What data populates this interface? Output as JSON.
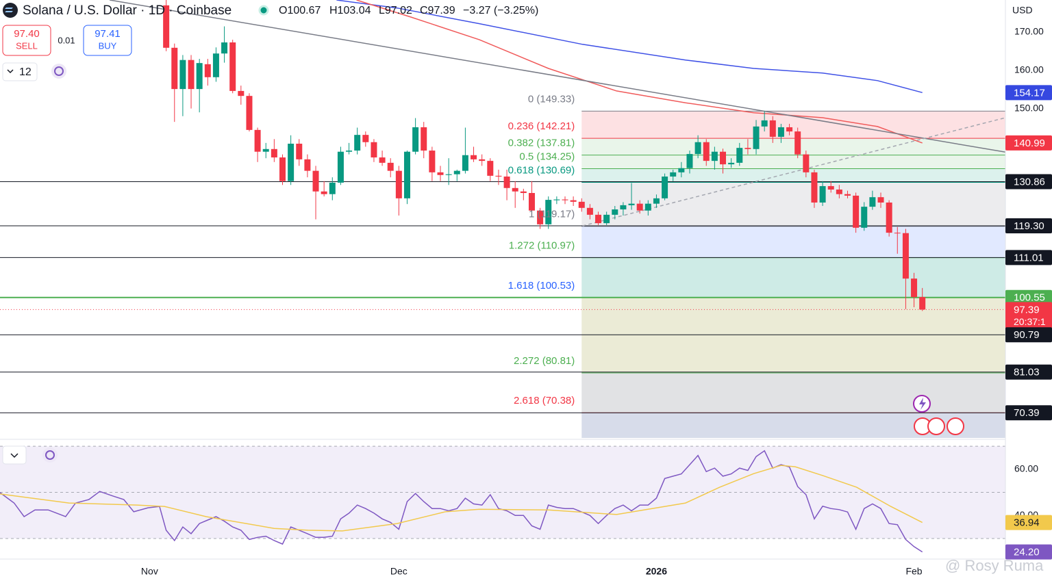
{
  "header": {
    "symbol": "Solana / U.S. Dollar · 1D · Coinbase",
    "open": "O100.67",
    "high": "H103.04",
    "low": "L97.02",
    "close": "C97.39",
    "change": "−3.27 (−3.25%)"
  },
  "trade": {
    "sell_price": "97.40",
    "sell": "SELL",
    "spread": "0.01",
    "buy_price": "97.41",
    "buy": "BUY"
  },
  "toolbar": {
    "interval": "12"
  },
  "watermark": "@ Rosy Ruma",
  "chart_data": {
    "type": "candlestick",
    "currency": "USD",
    "up_color": "#089981",
    "down_color": "#f23645",
    "xlim": [
      -20,
      101
    ],
    "xticks": [
      {
        "value": -2,
        "label": "Nov"
      },
      {
        "value": 28,
        "label": "Dec"
      },
      {
        "value": 59,
        "label": "2026"
      },
      {
        "value": 90,
        "label": "Feb"
      }
    ],
    "ylim": [
      63.8,
      178.4
    ],
    "yticks": [
      {
        "value": 170,
        "label": "170.00"
      },
      {
        "value": 160,
        "label": "160.00"
      },
      {
        "value": 150,
        "label": "150.00"
      }
    ],
    "grid": false,
    "candles": [
      [
        177,
        178.4,
        165,
        165.9
      ],
      [
        165.9,
        167,
        146.5,
        155.1
      ],
      [
        155.1,
        164,
        148,
        162.7
      ],
      [
        162.7,
        164,
        150,
        155.1
      ],
      [
        155.1,
        163,
        149,
        161.9
      ],
      [
        161.6,
        163,
        156,
        158.2
      ],
      [
        158.2,
        166,
        157,
        164.4
      ],
      [
        164.4,
        171.5,
        162,
        167.3
      ],
      [
        167.3,
        168,
        154,
        154.6
      ],
      [
        154.6,
        156,
        151,
        153.3
      ],
      [
        153.3,
        154,
        144,
        144.4
      ],
      [
        144.4,
        145,
        136,
        138.7
      ],
      [
        138.7,
        141,
        137,
        139.4
      ],
      [
        139.4,
        142,
        136,
        137.2
      ],
      [
        137.2,
        138,
        130,
        131.0
      ],
      [
        131.0,
        143,
        130,
        140.8
      ],
      [
        140.8,
        142,
        135,
        136.7
      ],
      [
        136.7,
        138,
        132,
        133.7
      ],
      [
        133.7,
        135,
        121,
        128.3
      ],
      [
        128.3,
        131,
        127,
        127.6
      ],
      [
        127.6,
        132,
        126,
        130.6
      ],
      [
        130.6,
        140,
        130,
        138.7
      ],
      [
        138.7,
        141,
        138,
        139.0
      ],
      [
        139.0,
        145,
        138,
        143.1
      ],
      [
        143.1,
        144,
        140,
        141.2
      ],
      [
        141.2,
        142,
        136,
        137.2
      ],
      [
        137.2,
        139,
        135,
        135.8
      ],
      [
        135.8,
        137,
        132,
        133.7
      ],
      [
        133.7,
        135,
        122,
        126.5
      ],
      [
        126.5,
        139,
        125,
        138.7
      ],
      [
        138.7,
        147.5,
        138,
        145.1
      ],
      [
        145.1,
        146.5,
        137,
        139.0
      ],
      [
        139.0,
        140,
        131,
        133.3
      ],
      [
        133.3,
        135,
        131,
        132.6
      ],
      [
        132.6,
        137,
        130,
        132.8
      ],
      [
        132.8,
        134,
        131,
        133.7
      ],
      [
        133.7,
        145,
        133,
        137.8
      ],
      [
        137.8,
        140,
        136,
        136.7
      ],
      [
        136.7,
        138,
        135,
        136.3
      ],
      [
        136.3,
        137,
        131,
        132.4
      ],
      [
        132.4,
        134,
        130,
        132.2
      ],
      [
        132.2,
        134,
        126,
        129.2
      ],
      [
        129.2,
        131,
        124,
        128.3
      ],
      [
        128.3,
        129,
        126,
        127.9
      ],
      [
        127.9,
        131,
        122,
        123.3
      ],
      [
        123.3,
        124,
        118.5,
        119.7
      ],
      [
        119.7,
        127,
        118.5,
        126.1
      ],
      [
        126.0,
        127,
        125,
        126.2
      ],
      [
        126.2,
        127,
        125,
        126.0
      ],
      [
        126.0,
        127,
        124.5,
        125.6
      ],
      [
        125.6,
        126.5,
        123,
        124.0
      ],
      [
        124.0,
        125,
        121,
        122.2
      ],
      [
        122.2,
        123,
        119.5,
        120.0
      ],
      [
        120.0,
        123,
        119.5,
        122.2
      ],
      [
        122.2,
        124.5,
        121,
        123.6
      ],
      [
        123.6,
        125.5,
        122,
        124.7
      ],
      [
        124.7,
        130.5,
        123.5,
        125.1
      ],
      [
        125.1,
        126,
        122.5,
        123.3
      ],
      [
        123.3,
        126,
        122,
        125.1
      ],
      [
        125.1,
        127.5,
        124,
        126.5
      ],
      [
        126.5,
        133,
        126,
        132.2
      ],
      [
        132.2,
        134,
        131,
        133.3
      ],
      [
        133.3,
        136,
        132,
        134.4
      ],
      [
        134.4,
        139,
        133,
        138.1
      ],
      [
        138.1,
        143,
        137,
        141.2
      ],
      [
        141.2,
        142,
        135,
        136.3
      ],
      [
        136.3,
        140,
        134,
        138.7
      ],
      [
        138.7,
        139.5,
        133,
        135.4
      ],
      [
        135.4,
        137,
        134.5,
        135.8
      ],
      [
        135.8,
        141,
        135,
        139.7
      ],
      [
        139.7,
        142,
        138,
        139.4
      ],
      [
        139.4,
        147,
        138,
        145.3
      ],
      [
        145.3,
        149.3,
        144,
        146.9
      ],
      [
        146.9,
        148,
        141,
        142.6
      ],
      [
        142.6,
        146,
        141,
        145.1
      ],
      [
        145.1,
        146,
        143,
        144.0
      ],
      [
        144.0,
        145,
        137,
        138.0
      ],
      [
        138.0,
        139,
        132,
        133.3
      ],
      [
        133.3,
        134,
        124,
        125.4
      ],
      [
        125.4,
        131,
        124.5,
        129.7
      ],
      [
        129.7,
        131,
        128,
        128.8
      ],
      [
        128.8,
        130,
        126.5,
        127.6
      ],
      [
        127.6,
        128.5,
        126.5,
        127.2
      ],
      [
        127.2,
        128,
        117.5,
        118.8
      ],
      [
        118.8,
        125.5,
        118,
        124.3
      ],
      [
        124.3,
        128.5,
        123.5,
        126.8
      ],
      [
        126.8,
        128,
        124,
        125.4
      ],
      [
        125.4,
        126,
        116.5,
        117.5
      ],
      [
        117.5,
        119,
        112,
        117.4
      ],
      [
        117.4,
        118.5,
        97.5,
        105.5
      ],
      [
        105.5,
        107,
        98,
        100.66
      ],
      [
        100.67,
        103.04,
        97.02,
        97.39
      ]
    ],
    "lines": [
      {
        "color": "#3f51e6",
        "x": [
          20.5,
          27.8,
          37.7,
          50.1,
          62.5,
          70.7,
          79.0,
          85.6,
          91
        ],
        "values": [
          178.4,
          176.3,
          172.2,
          166.8,
          162.7,
          160.5,
          159.3,
          157.3,
          154.17
        ]
      },
      {
        "color": "#f05a5a",
        "x": [
          22.9,
          29.5,
          37.7,
          46.0,
          54.2,
          62.5,
          70.7,
          79.0,
          85.6,
          91
        ],
        "values": [
          178.4,
          173.9,
          168.0,
          160.5,
          154.6,
          151.5,
          148.9,
          147.6,
          145.3,
          140.99
        ]
      },
      {
        "color": "#787b86",
        "x": [
          -6.8,
          101
        ],
        "values": [
          178.4,
          138.6
        ]
      },
      {
        "color": "#a3a6af",
        "dash": true,
        "x": [
          50.1,
          101
        ],
        "values": [
          119.3,
          147.6
        ]
      }
    ],
    "fib": {
      "x_start": 50,
      "levels": [
        {
          "label": "0 (149.33)",
          "price": 149.33,
          "color": "#787b86",
          "fill": "rgba(242,54,69,0.15)"
        },
        {
          "label": "0.236 (142.21)",
          "price": 142.21,
          "color": "#f23645",
          "fill": "rgba(76,175,80,0.12)"
        },
        {
          "label": "0.382 (137.81)",
          "price": 137.81,
          "color": "#4caf50",
          "fill": "rgba(76,175,80,0.12)"
        },
        {
          "label": "0.5 (134.25)",
          "price": 134.25,
          "color": "#4caf50",
          "fill": "rgba(8,153,129,0.14)"
        },
        {
          "label": "0.618 (130.69)",
          "price": 130.69,
          "color": "#089981",
          "fill": "rgba(120,123,134,0.14)"
        },
        {
          "label": "1 (119.17)",
          "price": 119.17,
          "color": "#787b86",
          "fill": "rgba(41,98,255,0.14)"
        },
        {
          "label": "1.272 (110.97)",
          "price": 110.97,
          "color": "#4caf50",
          "fill": "rgba(8,153,129,0.2)"
        },
        {
          "label": "1.618 (100.53)",
          "price": 100.53,
          "color": "#2962ff",
          "fill": "rgba(128,128,0,0.16)"
        },
        {
          "label": "2.272 (80.81)",
          "price": 80.81,
          "color": "#4caf50",
          "fill": "rgba(120,123,134,0.22)"
        },
        {
          "label": "2.618 (70.38)",
          "price": 70.38,
          "color": "#f23645",
          "fill": "rgba(72,96,160,0.22)"
        }
      ]
    },
    "price_tags": [
      {
        "value": 154.17,
        "color": "#3548e0",
        "line": "none"
      },
      {
        "value": 140.99,
        "color": "#f23645",
        "line": "none"
      },
      {
        "value": 130.86,
        "color": "#131722",
        "line": "solid"
      },
      {
        "value": 119.3,
        "label": "119.30",
        "color": "#131722",
        "line": "solid"
      },
      {
        "value": 111.01,
        "color": "#131722",
        "line": "solid"
      },
      {
        "value": 100.55,
        "color": "#4caf50",
        "line": "solid"
      },
      {
        "value": 97.39,
        "color": "#f23645",
        "line": "dotted",
        "countdown": "20:37:1"
      },
      {
        "value": 90.79,
        "color": "#131722",
        "line": "solid"
      },
      {
        "value": 81.03,
        "color": "#131722",
        "line": "solid"
      },
      {
        "value": 70.39,
        "color": "#131722",
        "line": "solid"
      }
    ],
    "rsi": {
      "ylim": [
        21.7,
        72.1
      ],
      "yticks": [
        {
          "value": 60,
          "label": "60.00"
        },
        {
          "value": 40,
          "label": "40.00"
        }
      ],
      "bands": [
        70,
        50,
        30
      ],
      "series": [
        {
          "color": "#7e57c2",
          "x": [
            -20,
            -18.3,
            -17.1,
            -15.8,
            -14.2,
            -12.1,
            -10.9,
            -9.3,
            -8,
            -6.4,
            -5.1,
            -3.9,
            -2.2,
            -0.8,
            0,
            1,
            2,
            3,
            4,
            5,
            6,
            7,
            8,
            9,
            10,
            11,
            12,
            13,
            14,
            15,
            16,
            17,
            18,
            19,
            20,
            21,
            22,
            23,
            24,
            25,
            26,
            27,
            28,
            29,
            30,
            31,
            32,
            33,
            34,
            35,
            36,
            37,
            38,
            39,
            40,
            41,
            42,
            43,
            44,
            45,
            46,
            47,
            48,
            49,
            50,
            51,
            52,
            53,
            54,
            55,
            56,
            57,
            58,
            59,
            60,
            61,
            62,
            63,
            64,
            65,
            66,
            67,
            68,
            69,
            70,
            71,
            72,
            73,
            74,
            75,
            76,
            77,
            78,
            79,
            80,
            81,
            82,
            83,
            84,
            85,
            86,
            87,
            88,
            89,
            90,
            91
          ],
          "values": [
            49.9,
            45.4,
            39.5,
            42.4,
            42.4,
            39.5,
            45.4,
            46.9,
            50.4,
            48.4,
            46.9,
            41.6,
            43.3,
            43.9,
            33.6,
            29.1,
            35.0,
            32.1,
            36.5,
            38.0,
            39.5,
            37.5,
            35.0,
            33.6,
            29.6,
            30.5,
            31.0,
            29.1,
            27.6,
            35.0,
            33.6,
            32.1,
            30.5,
            30.5,
            31.0,
            38.5,
            41.0,
            44.5,
            43.0,
            41.0,
            38.5,
            37.0,
            34.0,
            46.0,
            49.5,
            46.0,
            43.0,
            43.0,
            42.0,
            43.0,
            47.5,
            45.0,
            44.5,
            49.0,
            43.0,
            42.0,
            40.0,
            40.0,
            35.5,
            34.0,
            44.5,
            43.5,
            43.0,
            43.0,
            41.5,
            40.0,
            36.5,
            40.0,
            43.0,
            44.5,
            42.0,
            44.5,
            44.5,
            47.5,
            56.0,
            57.0,
            58.0,
            62.0,
            66.0,
            59.0,
            60.5,
            57.0,
            58.0,
            60.5,
            59.5,
            65.5,
            68.0,
            60.5,
            62.0,
            61.0,
            52.5,
            49.0,
            38.5,
            44.0,
            43.0,
            42.5,
            41.5,
            34.0,
            43.0,
            45.0,
            43.0,
            36.5,
            36.0,
            29.6,
            26.5,
            24.2
          ]
        },
        {
          "color": "#f2c94c",
          "x": [
            -20,
            -11.7,
            -3.5,
            -0.2,
            4.8,
            13.0,
            17.1,
            21.2,
            27.8,
            33.6,
            37.7,
            46.0,
            54.2,
            62.5,
            66.6,
            70.7,
            74.0,
            75.7,
            79.0,
            83.1,
            87.2,
            91
          ],
          "values": [
            49.3,
            45.4,
            44.5,
            43.9,
            39.5,
            34.4,
            33.6,
            33.3,
            36.5,
            41.6,
            42.7,
            42.4,
            40.4,
            45.4,
            52.2,
            58.1,
            61.7,
            61.1,
            57.3,
            52.2,
            43.9,
            36.94
          ]
        }
      ],
      "tags": [
        {
          "value": 36.94,
          "color": "#f2c94c",
          "text_color": "#131722"
        },
        {
          "value": 24.2,
          "label": "24.20",
          "color": "#7e57c2",
          "text_color": "#ffffff"
        }
      ]
    }
  }
}
